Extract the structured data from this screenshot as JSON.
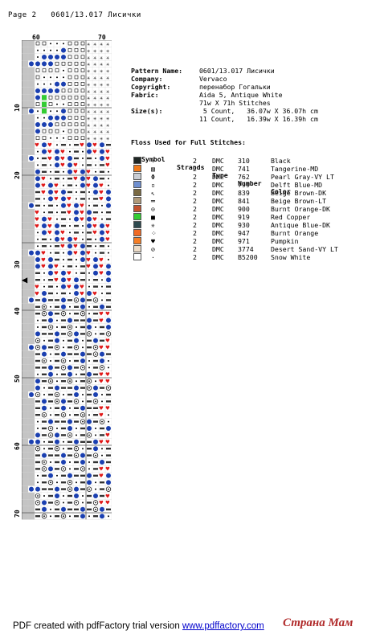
{
  "header": {
    "page_label": "Page 2",
    "pattern_id": "0601/13.017 Лисички"
  },
  "chart_axes": {
    "col_labels": [
      "60",
      "70"
    ],
    "row_labels": [
      "10",
      "20",
      "30",
      "40",
      "50",
      "60",
      "70"
    ]
  },
  "pattern_info": {
    "name_key": "Pattern Name:",
    "name_value": "0601/13.017 Лисички",
    "company_key": "Company:",
    "company_value": "Vervaco",
    "copyright_key": "Copyright:",
    "copyright_value": "перенабор Гогальки",
    "fabric_key": "Fabric:",
    "fabric_value": "Aida 5, Antique White",
    "fabric_value2": "71w X 71h Stitches",
    "size_key": "Size(s):",
    "size_value1": " 5 Count,   36.07w X 36.07h cm",
    "size_value2": "11 Count,   16.39w X 16.39h cm"
  },
  "floss": {
    "title": "Floss Used for Full Stitches:",
    "col_symbol": "Symbol",
    "col_strands": "Strands",
    "col_type": "Type",
    "col_number": "Number",
    "col_color": "Color",
    "items": [
      {
        "swatch": "#1e2624",
        "symbol": "‹",
        "strands": "2",
        "type": "DMC",
        "number": "310",
        "color": "Black"
      },
      {
        "swatch": "#f07a1c",
        "symbol": "▧",
        "strands": "2",
        "type": "DMC",
        "number": "741",
        "color": "Tangerine-MD"
      },
      {
        "swatch": "#c9cdd3",
        "symbol": "Φ",
        "strands": "2",
        "type": "DMC",
        "number": "762",
        "color": "Pearl Gray-VY LT"
      },
      {
        "swatch": "#6f8fcf",
        "symbol": "▫",
        "strands": "2",
        "type": "DMC",
        "number": "799",
        "color": "Delft Blue-MD"
      },
      {
        "swatch": "#7a6a43",
        "symbol": "↖",
        "strands": "2",
        "type": "DMC",
        "number": "839",
        "color": "Beige Brown-DK"
      },
      {
        "swatch": "#b09a7a",
        "symbol": "═",
        "strands": "2",
        "type": "DMC",
        "number": "841",
        "color": "Beige Brown-LT"
      },
      {
        "swatch": "#c2532f",
        "symbol": "⊙",
        "strands": "2",
        "type": "DMC",
        "number": "900",
        "color": "Burnt Orange-DK"
      },
      {
        "swatch": "#33cc33",
        "symbol": "■",
        "strands": "2",
        "type": "DMC",
        "number": "919",
        "color": "Red Copper"
      },
      {
        "swatch": "#2e4a4f",
        "symbol": "✳",
        "strands": "2",
        "type": "DMC",
        "number": "930",
        "color": "Antique Blue-DK"
      },
      {
        "swatch": "#f06b25",
        "symbol": "⁘",
        "strands": "2",
        "type": "DMC",
        "number": "947",
        "color": "Burnt Orange"
      },
      {
        "swatch": "#f57e26",
        "symbol": "♥",
        "strands": "2",
        "type": "DMC",
        "number": "971",
        "color": "Pumpkin"
      },
      {
        "swatch": "#eddcc8",
        "symbol": "⊘",
        "strands": "2",
        "type": "DMC",
        "number": "3774",
        "color": "Desert Sand-VY LT"
      },
      {
        "swatch": "#ffffff",
        "symbol": "·",
        "strands": "2",
        "type": "DMC",
        "number": "B5200",
        "color": "Snow White"
      }
    ]
  },
  "footer": {
    "prefix": "PDF created with pdfFactory trial version ",
    "link": "www.pdffactory.com"
  },
  "watermark": "Страна Мам"
}
